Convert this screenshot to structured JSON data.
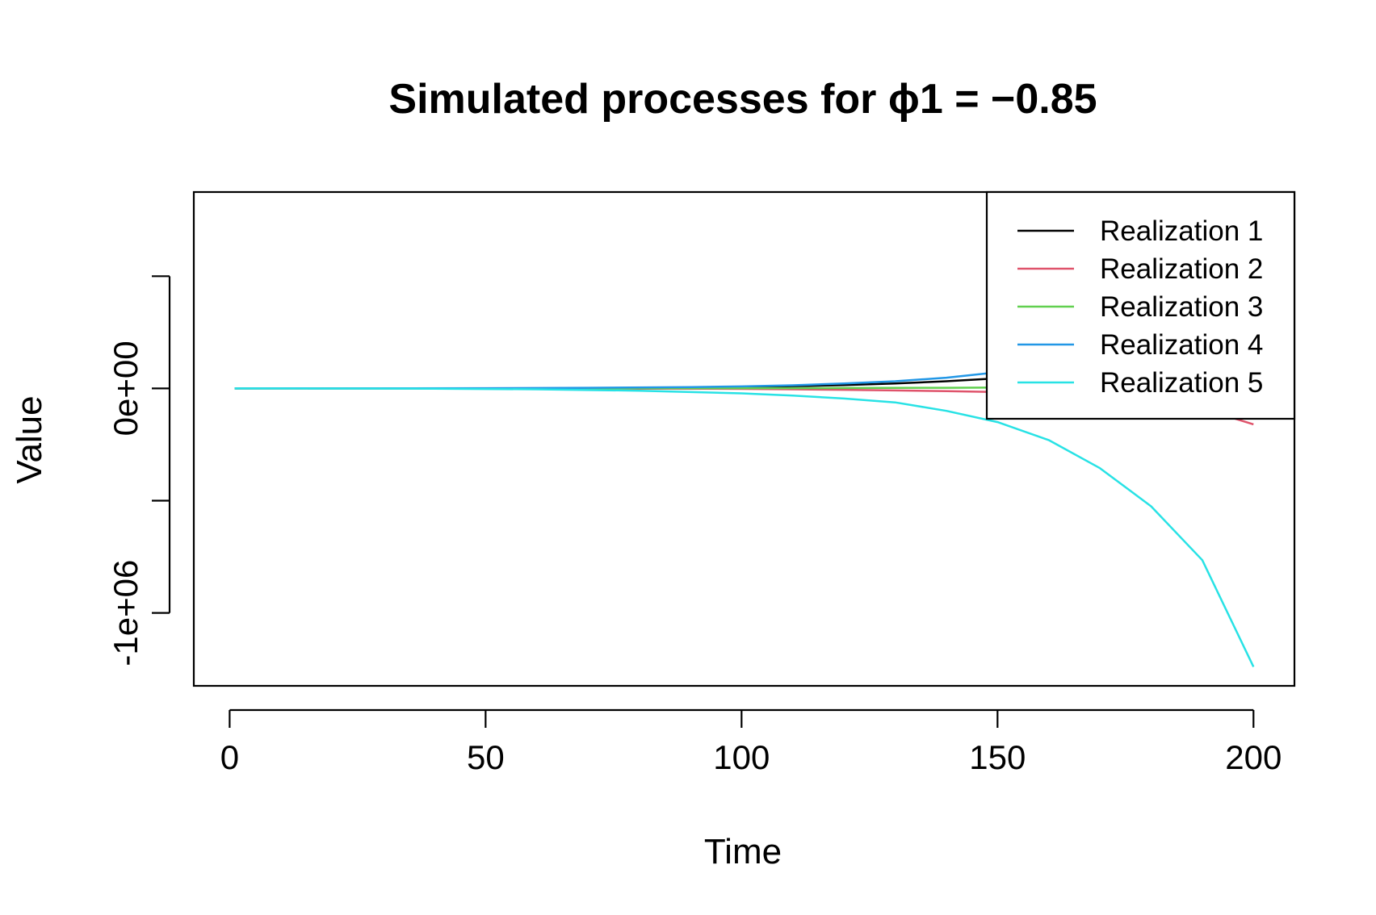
{
  "chart_data": {
    "type": "line",
    "title": "Simulated processes for ϕ1 = −0.85",
    "xlabel": "Time",
    "ylabel": "Value",
    "xlim": [
      -7,
      208
    ],
    "ylim": [
      -1325000,
      875000
    ],
    "x_ticks": [
      0,
      50,
      100,
      150,
      200
    ],
    "x_tick_labels": [
      "0",
      "50",
      "100",
      "150",
      "200"
    ],
    "y_ticks": [
      -1000000,
      -500000,
      0,
      500000
    ],
    "y_tick_labels": [
      "-1e+06",
      "",
      "0e+00",
      ""
    ],
    "grid": false,
    "legend_position": "top-right",
    "series": [
      {
        "name": "Realization 1",
        "color": "#000000",
        "points": [
          [
            1,
            0
          ],
          [
            60,
            0
          ],
          [
            80,
            2000
          ],
          [
            100,
            6000
          ],
          [
            110,
            10000
          ],
          [
            120,
            15000
          ],
          [
            130,
            22000
          ],
          [
            140,
            32000
          ],
          [
            150,
            45000
          ],
          [
            160,
            60000
          ],
          [
            170,
            78000
          ],
          [
            180,
            95000
          ],
          [
            190,
            110000
          ],
          [
            200,
            122000
          ]
        ]
      },
      {
        "name": "Realization 2",
        "color": "#DF536B",
        "points": [
          [
            1,
            0
          ],
          [
            60,
            0
          ],
          [
            80,
            -1000
          ],
          [
            100,
            -2000
          ],
          [
            110,
            -4000
          ],
          [
            120,
            -6000
          ],
          [
            130,
            -9000
          ],
          [
            140,
            -12000
          ],
          [
            150,
            -16000
          ],
          [
            160,
            -22000
          ],
          [
            170,
            -32000
          ],
          [
            180,
            -50000
          ],
          [
            190,
            -90000
          ],
          [
            200,
            -160000
          ]
        ]
      },
      {
        "name": "Realization 3",
        "color": "#61D04F",
        "points": [
          [
            1,
            0
          ],
          [
            60,
            0
          ],
          [
            100,
            1000
          ],
          [
            120,
            2000
          ],
          [
            140,
            3000
          ],
          [
            160,
            5000
          ],
          [
            180,
            7000
          ],
          [
            200,
            9000
          ]
        ]
      },
      {
        "name": "Realization 4",
        "color": "#2297E6",
        "points": [
          [
            1,
            0
          ],
          [
            50,
            1000
          ],
          [
            70,
            3000
          ],
          [
            90,
            6000
          ],
          [
            100,
            9000
          ],
          [
            110,
            14000
          ],
          [
            120,
            22000
          ],
          [
            130,
            32000
          ],
          [
            140,
            48000
          ],
          [
            150,
            72000
          ],
          [
            160,
            105000
          ],
          [
            170,
            145000
          ],
          [
            180,
            190000
          ],
          [
            190,
            230000
          ],
          [
            200,
            262000
          ]
        ]
      },
      {
        "name": "Realization 5",
        "color": "#28E2E5",
        "points": [
          [
            1,
            0
          ],
          [
            40,
            -1000
          ],
          [
            60,
            -4000
          ],
          [
            80,
            -10000
          ],
          [
            100,
            -22000
          ],
          [
            110,
            -32000
          ],
          [
            120,
            -45000
          ],
          [
            130,
            -62000
          ],
          [
            140,
            -100000
          ],
          [
            150,
            -150000
          ],
          [
            160,
            -230000
          ],
          [
            170,
            -355000
          ],
          [
            180,
            -525000
          ],
          [
            190,
            -765000
          ],
          [
            200,
            -1240000
          ]
        ]
      }
    ]
  }
}
